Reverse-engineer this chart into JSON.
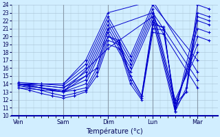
{
  "background_color": "#d0eeff",
  "grid_color": "#b0c8dd",
  "line_color": "#0000cc",
  "xlabel": "Température (°c)",
  "ylim": [
    10,
    24
  ],
  "yticks": [
    10,
    11,
    12,
    13,
    14,
    15,
    16,
    17,
    18,
    19,
    20,
    21,
    22,
    23,
    24
  ],
  "days": [
    "Ven",
    "Sam",
    "Dim",
    "Lun",
    "Mar"
  ],
  "day_x": [
    0,
    1,
    2,
    3,
    4
  ],
  "lines": [
    {
      "x": [
        0.0,
        0.25,
        0.5,
        0.75,
        1.0,
        1.25,
        1.5,
        1.75,
        2.0,
        2.25,
        2.5,
        2.75,
        3.0,
        3.25,
        3.5,
        3.75,
        4.0,
        4.25
      ],
      "y": [
        14.0,
        13.8,
        13.5,
        13.2,
        13.0,
        13.2,
        13.5,
        16.0,
        20.0,
        19.5,
        15.0,
        12.5,
        21.5,
        21.2,
        10.5,
        13.5,
        24.0,
        23.5
      ]
    },
    {
      "x": [
        0.0,
        0.25,
        0.5,
        0.75,
        1.0,
        1.25,
        1.5,
        1.75,
        2.0,
        2.25,
        2.5,
        2.75,
        3.0,
        3.25,
        3.5,
        3.75,
        4.0,
        4.25
      ],
      "y": [
        13.8,
        13.5,
        13.2,
        12.8,
        12.5,
        12.8,
        13.2,
        15.5,
        19.5,
        19.0,
        14.5,
        12.2,
        21.0,
        20.8,
        11.0,
        13.0,
        23.0,
        22.5
      ]
    },
    {
      "x": [
        0.0,
        0.25,
        0.5,
        0.75,
        1.0,
        1.25,
        1.5,
        1.75,
        2.0,
        2.25,
        2.5,
        2.75,
        3.0,
        3.25,
        3.5,
        3.75,
        4.0,
        4.25
      ],
      "y": [
        13.5,
        13.2,
        12.8,
        12.5,
        12.2,
        12.5,
        13.0,
        15.0,
        19.0,
        18.5,
        14.0,
        12.0,
        20.5,
        20.3,
        11.5,
        13.0,
        22.0,
        21.5
      ]
    },
    {
      "x": [
        0.0,
        0.5,
        1.0,
        1.5,
        2.0,
        2.25,
        2.5,
        2.75,
        3.0,
        3.25,
        3.5,
        4.0,
        4.25
      ],
      "y": [
        14.0,
        13.5,
        13.0,
        14.0,
        20.0,
        19.2,
        15.0,
        12.5,
        21.8,
        21.0,
        10.5,
        22.5,
        22.0
      ]
    },
    {
      "x": [
        0.0,
        0.5,
        1.0,
        1.5,
        2.0,
        2.5,
        3.0,
        3.5,
        4.0,
        4.25
      ],
      "y": [
        14.0,
        13.5,
        13.2,
        14.5,
        20.5,
        15.5,
        22.0,
        10.5,
        21.0,
        20.5
      ]
    },
    {
      "x": [
        0.0,
        0.5,
        1.0,
        1.5,
        2.0,
        2.5,
        3.0,
        3.5,
        4.0,
        4.25
      ],
      "y": [
        14.0,
        13.8,
        13.5,
        15.0,
        21.0,
        16.0,
        22.5,
        11.0,
        20.0,
        19.5
      ]
    },
    {
      "x": [
        0.0,
        0.5,
        1.0,
        1.5,
        2.0,
        2.5,
        3.0,
        3.5,
        4.0
      ],
      "y": [
        14.0,
        13.8,
        13.5,
        15.5,
        21.5,
        16.5,
        23.0,
        11.5,
        19.0
      ]
    },
    {
      "x": [
        0.0,
        0.5,
        1.0,
        1.5,
        2.0,
        2.5,
        3.0,
        3.5,
        4.0
      ],
      "y": [
        14.0,
        14.0,
        13.8,
        16.0,
        22.0,
        17.0,
        23.5,
        12.0,
        18.0
      ]
    },
    {
      "x": [
        0.0,
        0.5,
        1.0,
        1.5,
        2.0,
        2.5,
        3.0,
        4.0
      ],
      "y": [
        14.2,
        14.0,
        14.0,
        16.5,
        22.5,
        17.5,
        24.0,
        17.0
      ]
    },
    {
      "x": [
        0.0,
        0.5,
        1.0,
        1.5,
        2.0,
        3.0,
        4.0
      ],
      "y": [
        14.0,
        14.0,
        14.0,
        17.0,
        23.0,
        24.5,
        15.5
      ]
    },
    {
      "x": [
        0.0,
        0.5,
        1.0,
        1.75,
        2.0,
        3.0,
        4.0
      ],
      "y": [
        13.8,
        13.5,
        13.0,
        16.0,
        21.0,
        23.0,
        14.5
      ]
    },
    {
      "x": [
        0.0,
        1.0,
        2.0,
        3.0,
        4.0
      ],
      "y": [
        13.5,
        13.0,
        18.5,
        22.5,
        13.5
      ]
    }
  ]
}
